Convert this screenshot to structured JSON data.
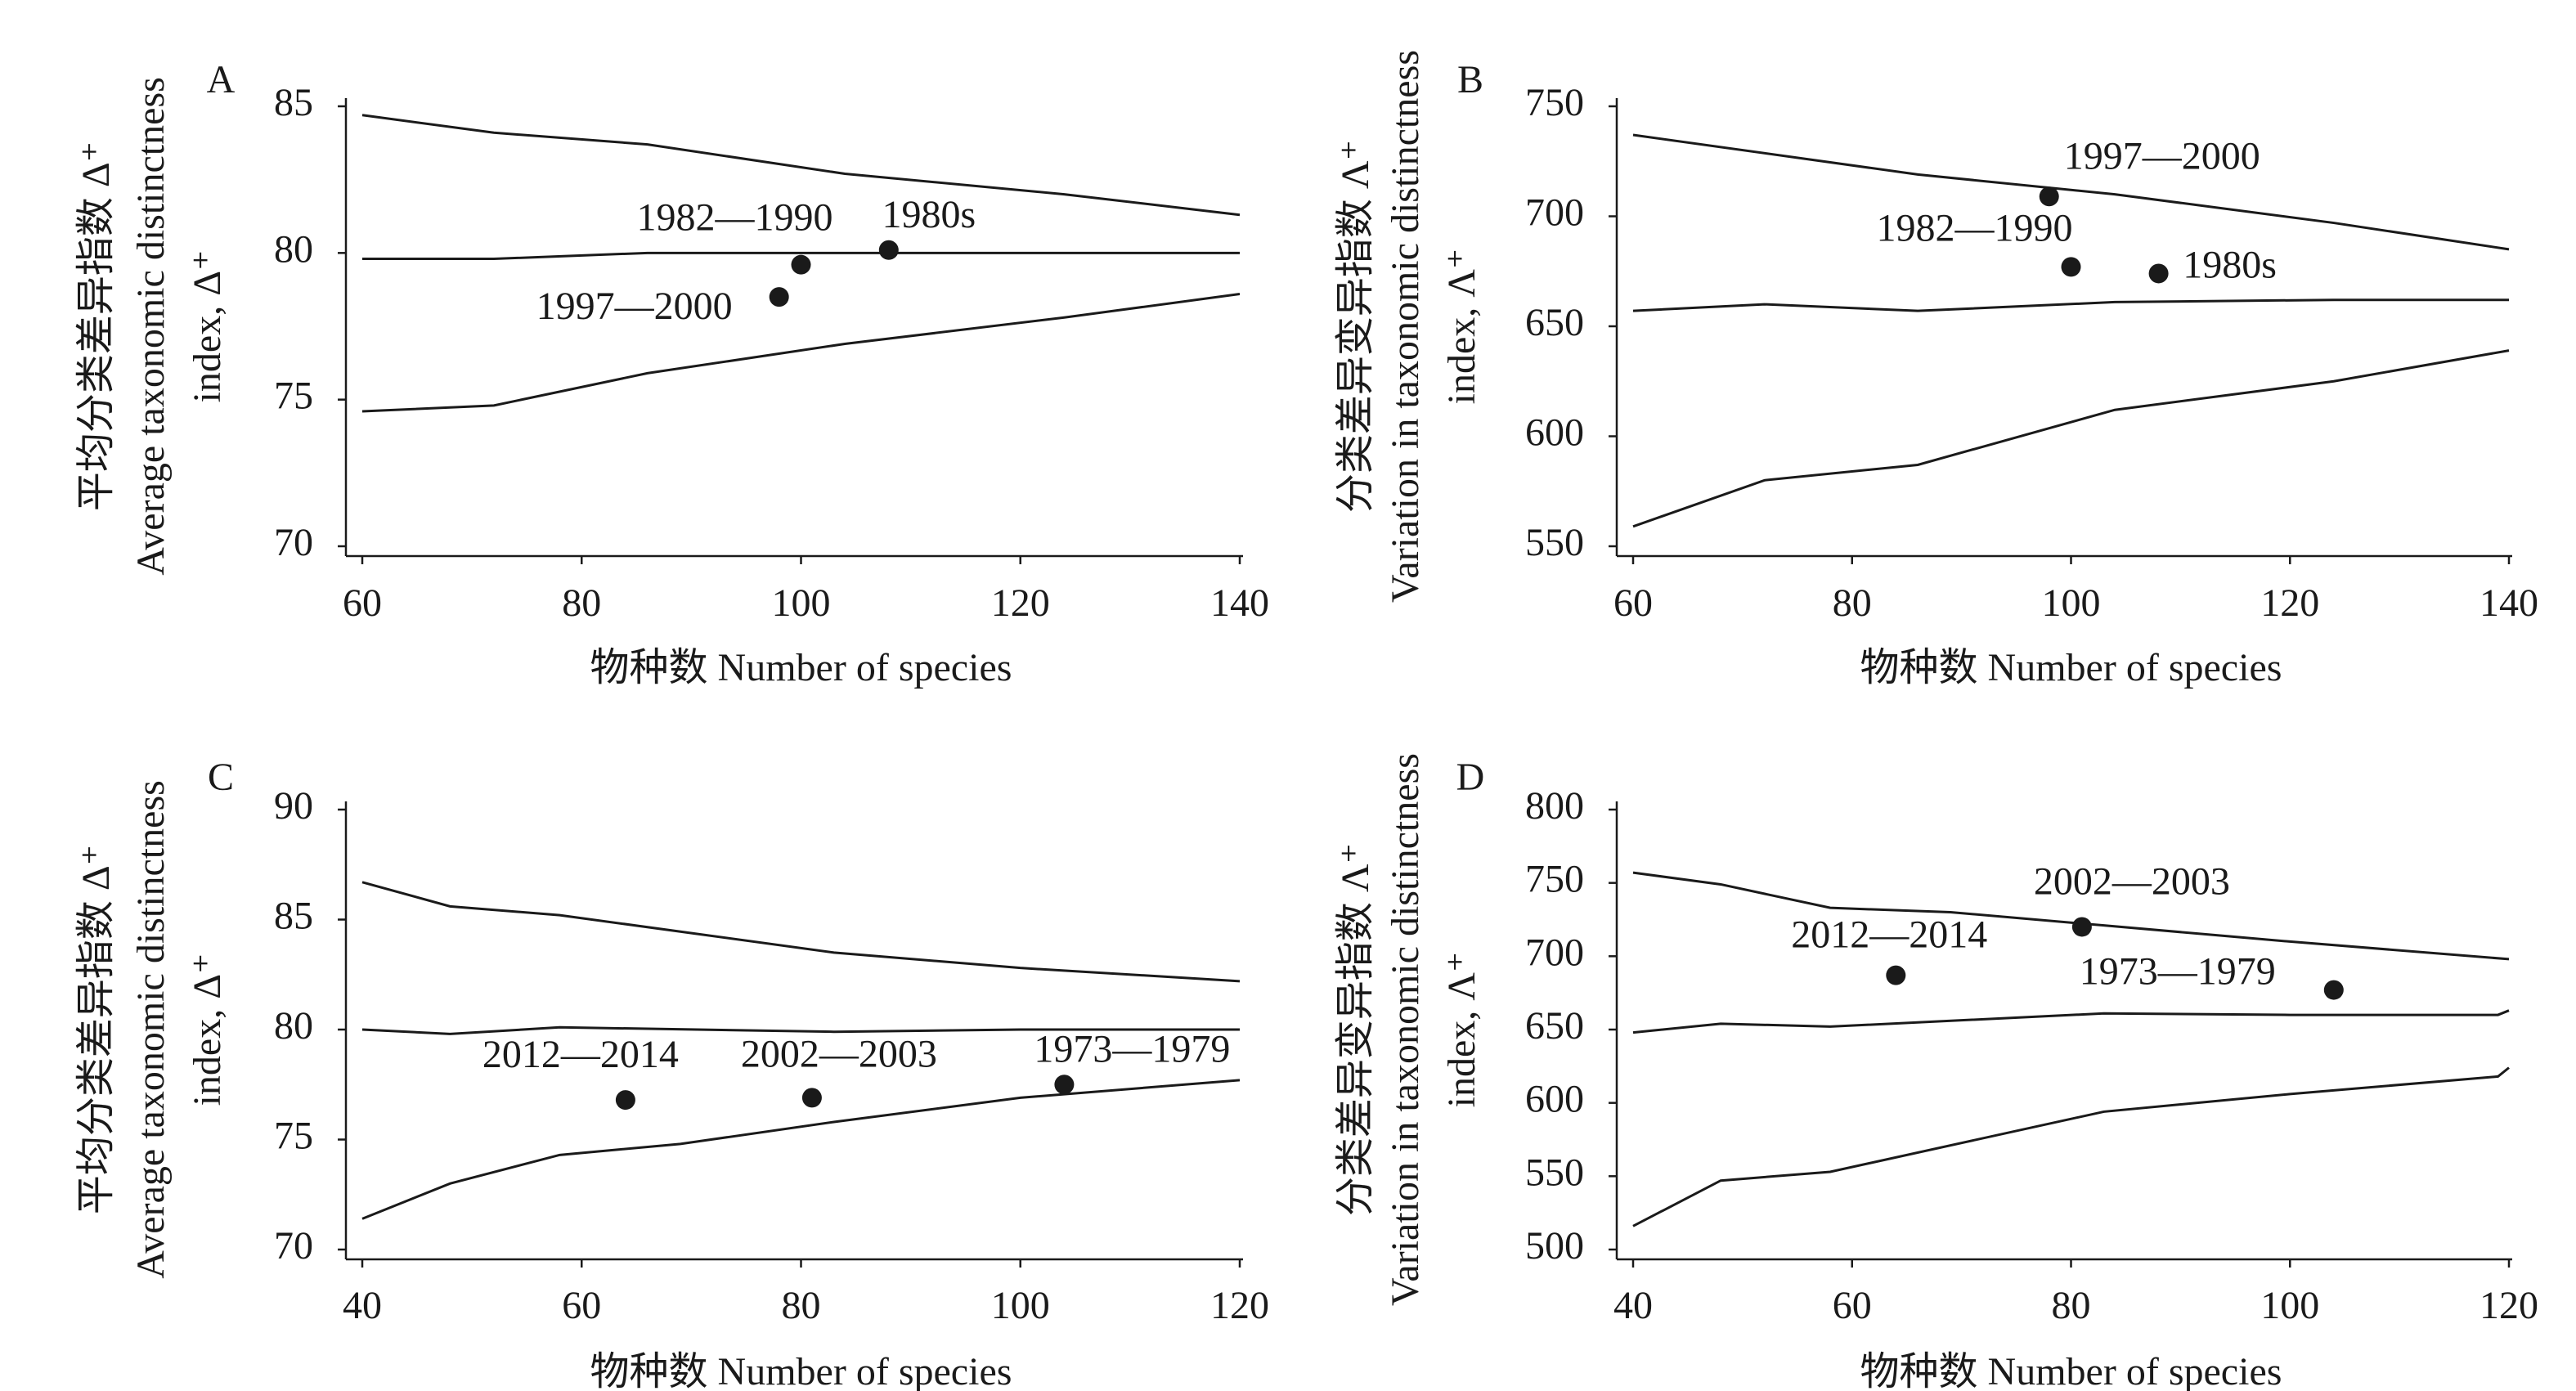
{
  "chart_data": [
    {
      "type": "line",
      "panel": "A",
      "ylabel": [
        "平均分类差异指数 Δ⁺",
        "Average taxonomic distinctness",
        "index, Δ⁺"
      ],
      "xlabel": "物种数 Number of species",
      "xlim": [
        60,
        140
      ],
      "xticks": [
        60,
        80,
        100,
        120,
        140
      ],
      "ylim": [
        70,
        85
      ],
      "yticks": [
        70,
        75,
        80,
        85
      ],
      "color": "#1a1a1a",
      "series": [
        {
          "x": [
            60,
            72,
            86,
            104,
            124,
            140
          ],
          "values": [
            84.7,
            84.1,
            83.7,
            82.7,
            82.0,
            81.3
          ]
        },
        {
          "x": [
            60,
            72,
            86,
            100,
            120,
            140
          ],
          "values": [
            79.8,
            79.8,
            80.0,
            80.0,
            80.0,
            80.0
          ]
        },
        {
          "x": [
            60,
            72,
            86,
            104,
            124,
            140
          ],
          "values": [
            74.6,
            74.8,
            75.9,
            76.9,
            77.8,
            78.6
          ]
        }
      ],
      "points": {
        "x": [
          100,
          108,
          98
        ],
        "values": [
          79.6,
          80.1,
          78.5
        ],
        "labels": [
          "1982—1990",
          "1980s",
          "1997—2000"
        ]
      }
    },
    {
      "type": "line",
      "panel": "B",
      "ylabel": [
        "分类差异变异指数 Λ⁺",
        "Variation in taxonomic distinctness",
        "index, Λ⁺"
      ],
      "xlabel": "物种数 Number of species",
      "xlim": [
        60,
        140
      ],
      "xticks": [
        60,
        80,
        100,
        120,
        140
      ],
      "ylim": [
        550,
        750
      ],
      "yticks": [
        550,
        600,
        650,
        700,
        750
      ],
      "color": "#1a1a1a",
      "series": [
        {
          "x": [
            60,
            86,
            104,
            124,
            140
          ],
          "values": [
            737,
            719,
            710,
            697,
            685
          ]
        },
        {
          "x": [
            60,
            72,
            86,
            104,
            124,
            140
          ],
          "values": [
            657,
            660,
            657,
            661,
            662,
            662
          ]
        },
        {
          "x": [
            60,
            72,
            86,
            104,
            124,
            140
          ],
          "values": [
            559,
            580,
            587,
            612,
            625,
            639
          ]
        }
      ],
      "points": {
        "x": [
          98,
          100,
          108
        ],
        "values": [
          709,
          677,
          674
        ],
        "labels": [
          "1997—2000",
          "1982—1990",
          "1980s"
        ]
      }
    },
    {
      "type": "line",
      "panel": "C",
      "ylabel": [
        "平均分类差异指数 Δ⁺",
        "Average taxonomic distinctness",
        "index, Δ⁺"
      ],
      "xlabel": "物种数 Number of species",
      "xlim": [
        40,
        120
      ],
      "xticks": [
        40,
        60,
        80,
        100,
        120
      ],
      "ylim": [
        70,
        90
      ],
      "yticks": [
        70,
        75,
        80,
        85,
        90
      ],
      "color": "#1a1a1a",
      "series": [
        {
          "x": [
            40,
            48,
            58,
            83,
            100,
            120
          ],
          "values": [
            86.7,
            85.6,
            85.2,
            83.5,
            82.8,
            82.2
          ]
        },
        {
          "x": [
            40,
            48,
            58,
            83,
            100,
            120
          ],
          "values": [
            80.0,
            79.8,
            80.1,
            79.9,
            80.0,
            80.0
          ]
        },
        {
          "x": [
            40,
            48,
            58,
            69,
            83,
            100,
            120
          ],
          "values": [
            71.4,
            73.0,
            74.3,
            74.8,
            75.8,
            76.9,
            77.7
          ]
        }
      ],
      "points": {
        "x": [
          64,
          81,
          104
        ],
        "values": [
          76.8,
          76.9,
          77.5
        ],
        "labels": [
          "2012—2014",
          "2002—2003",
          "1973—1979"
        ]
      }
    },
    {
      "type": "line",
      "panel": "D",
      "ylabel": [
        "分类差异变异指数 Λ⁺",
        "Variation in taxonomic distinctness",
        "index, Λ⁺"
      ],
      "xlabel": "物种数 Number of species",
      "xlim": [
        40,
        120
      ],
      "xticks": [
        40,
        60,
        80,
        100,
        120
      ],
      "ylim": [
        500,
        800
      ],
      "yticks": [
        500,
        550,
        600,
        650,
        700,
        750,
        800
      ],
      "color": "#1a1a1a",
      "series": [
        {
          "x": [
            40,
            48,
            58,
            69,
            83,
            100,
            120
          ],
          "values": [
            757,
            749,
            733,
            730,
            721,
            710,
            698
          ]
        },
        {
          "x": [
            40,
            48,
            58,
            83,
            100,
            119,
            120
          ],
          "values": [
            648,
            654,
            652,
            661,
            660,
            660,
            663
          ]
        },
        {
          "x": [
            40,
            48,
            58,
            83,
            100,
            119,
            120
          ],
          "values": [
            516,
            547,
            553,
            594,
            606,
            618,
            624
          ]
        }
      ],
      "points": {
        "x": [
          64,
          81,
          104
        ],
        "values": [
          687,
          720,
          677
        ],
        "labels": [
          "2012—2014",
          "2002—2003",
          "1973—1979"
        ]
      }
    }
  ]
}
